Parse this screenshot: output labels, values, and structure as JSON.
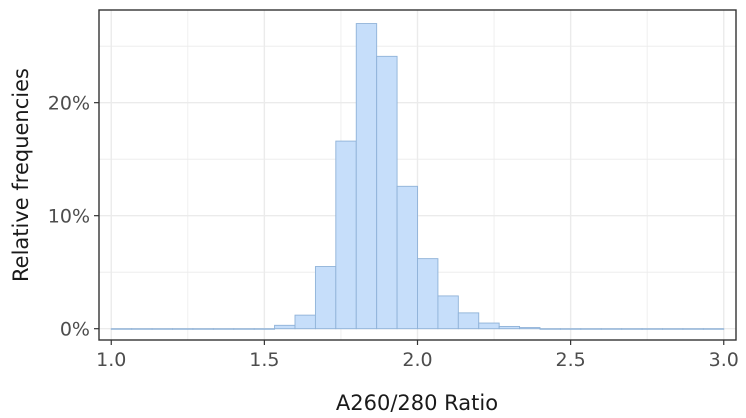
{
  "chart_data": {
    "type": "bar",
    "subtype": "histogram",
    "title": "",
    "xlabel": "A260/280 Ratio",
    "ylabel": "Relative frequencies",
    "xlim": [
      0.96,
      3.04
    ],
    "ylim": [
      -0.01,
      0.282
    ],
    "x_ticks": [
      1.0,
      1.5,
      2.0,
      2.5,
      3.0
    ],
    "x_tick_labels": [
      "1.0",
      "1.5",
      "2.0",
      "2.5",
      "3.0"
    ],
    "y_ticks": [
      0,
      0.1,
      0.2
    ],
    "y_tick_labels": [
      "0%",
      "10%",
      "20%"
    ],
    "grid": true,
    "legend": "none",
    "colors": {
      "bar_fill": "#c6defa",
      "bar_stroke": "#8fb2d8",
      "grid": "#ebebeb",
      "panel_border": "#333333"
    },
    "bin_width": 0.0667,
    "bins": [
      {
        "x0": 1.0,
        "x1": 1.0667,
        "value": 0.0
      },
      {
        "x0": 1.0667,
        "x1": 1.1333,
        "value": 0.0
      },
      {
        "x0": 1.1333,
        "x1": 1.2,
        "value": 0.0
      },
      {
        "x0": 1.2,
        "x1": 1.2667,
        "value": 0.0
      },
      {
        "x0": 1.2667,
        "x1": 1.3333,
        "value": 0.0
      },
      {
        "x0": 1.3333,
        "x1": 1.4,
        "value": 0.0
      },
      {
        "x0": 1.4,
        "x1": 1.4667,
        "value": 0.0
      },
      {
        "x0": 1.4667,
        "x1": 1.5333,
        "value": 0.0
      },
      {
        "x0": 1.5333,
        "x1": 1.6,
        "value": 0.003
      },
      {
        "x0": 1.6,
        "x1": 1.6667,
        "value": 0.012
      },
      {
        "x0": 1.6667,
        "x1": 1.7333,
        "value": 0.055
      },
      {
        "x0": 1.7333,
        "x1": 1.8,
        "value": 0.166
      },
      {
        "x0": 1.8,
        "x1": 1.8667,
        "value": 0.27
      },
      {
        "x0": 1.8667,
        "x1": 1.9333,
        "value": 0.241
      },
      {
        "x0": 1.9333,
        "x1": 2.0,
        "value": 0.126
      },
      {
        "x0": 2.0,
        "x1": 2.0667,
        "value": 0.062
      },
      {
        "x0": 2.0667,
        "x1": 2.1333,
        "value": 0.029
      },
      {
        "x0": 2.1333,
        "x1": 2.2,
        "value": 0.014
      },
      {
        "x0": 2.2,
        "x1": 2.2667,
        "value": 0.005
      },
      {
        "x0": 2.2667,
        "x1": 2.3333,
        "value": 0.002
      },
      {
        "x0": 2.3333,
        "x1": 2.4,
        "value": 0.001
      },
      {
        "x0": 2.4,
        "x1": 2.4667,
        "value": 0.0
      },
      {
        "x0": 2.4667,
        "x1": 2.5333,
        "value": 0.0
      },
      {
        "x0": 2.5333,
        "x1": 2.6,
        "value": 0.0
      },
      {
        "x0": 2.6,
        "x1": 2.6667,
        "value": 0.0
      },
      {
        "x0": 2.6667,
        "x1": 2.7333,
        "value": 0.0
      },
      {
        "x0": 2.7333,
        "x1": 2.8,
        "value": 0.0
      },
      {
        "x0": 2.8,
        "x1": 2.8667,
        "value": 0.0
      },
      {
        "x0": 2.8667,
        "x1": 2.9333,
        "value": 0.0
      },
      {
        "x0": 2.9333,
        "x1": 3.0,
        "value": 0.0
      }
    ]
  }
}
